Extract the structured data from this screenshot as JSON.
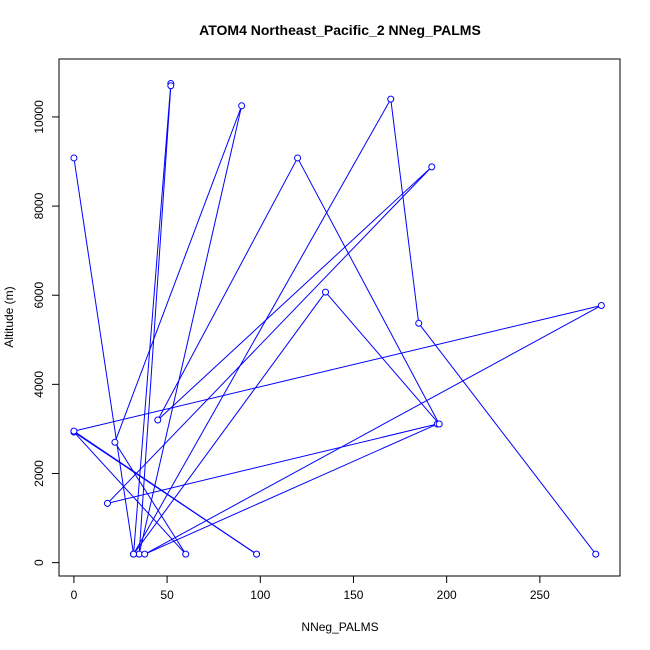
{
  "chart_data": {
    "type": "line",
    "title": "ATOM4 Northeast_Pacific_2 NNeg_PALMS",
    "xlabel": "NNeg_PALMS",
    "ylabel": "Altitude (m)",
    "xlim": [
      -8,
      293
    ],
    "ylim": [
      -300,
      11300
    ],
    "x_ticks": [
      0,
      50,
      100,
      150,
      200,
      250
    ],
    "y_ticks": [
      0,
      2000,
      4000,
      6000,
      8000,
      10000
    ],
    "grid": false,
    "legend": "none",
    "markers": "open circles",
    "color": "#0000ff",
    "series": [
      {
        "x": [
          0,
          32,
          52,
          52,
          35,
          90,
          22,
          60,
          0,
          98,
          0,
          283,
          38,
          195,
          18,
          192,
          45,
          120,
          196,
          135,
          32,
          170,
          185,
          280
        ],
        "y": [
          9080,
          190,
          10750,
          10700,
          190,
          10250,
          2700,
          190,
          2930,
          190,
          2950,
          5770,
          190,
          3110,
          1330,
          8880,
          3200,
          9080,
          3110,
          6070,
          190,
          10400,
          5370,
          190
        ]
      }
    ]
  }
}
